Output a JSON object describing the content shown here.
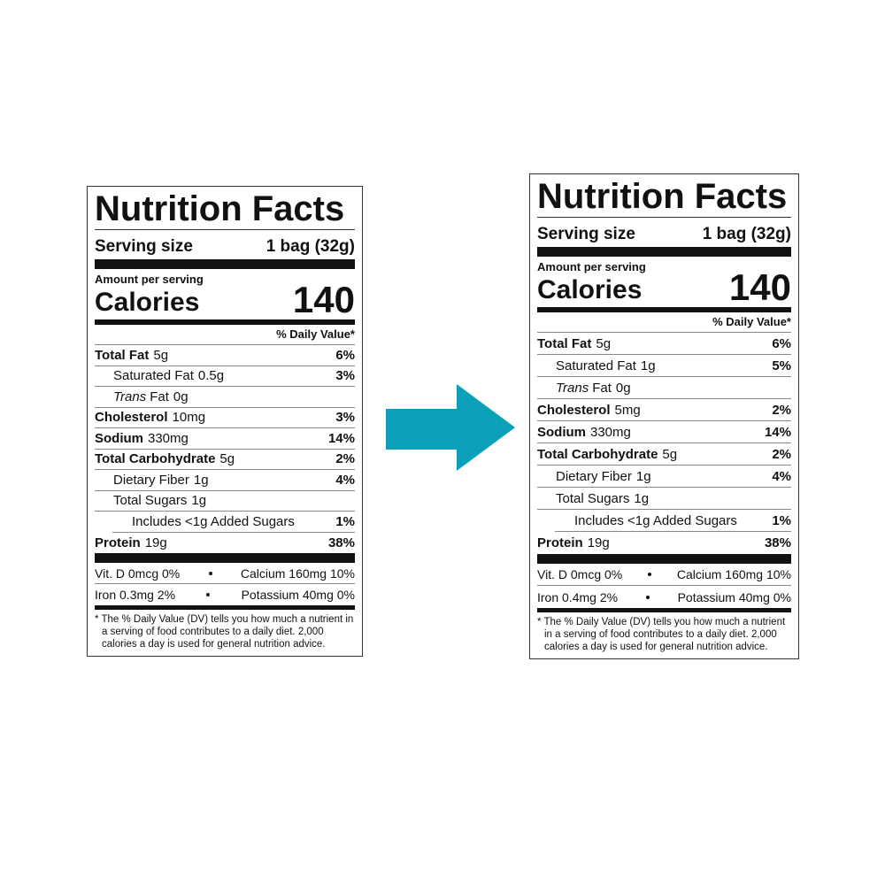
{
  "labels": [
    {
      "title": "Nutrition Facts",
      "serving_label": "Serving size",
      "serving_value": "1 bag (32g)",
      "amount_per_serving": "Amount per serving",
      "calories_label": "Calories",
      "calories_value": "140",
      "daily_value_header": "% Daily Value*",
      "nutrients": [
        {
          "name": "Total Fat",
          "amount": "5g",
          "dv": "6%",
          "sub": [
            {
              "name": "Saturated Fat",
              "amount": "0.5g",
              "dv": "3%"
            },
            {
              "name_italic": "Trans",
              "name": "Fat",
              "amount": "0g"
            }
          ]
        },
        {
          "name": "Cholesterol",
          "amount": "10mg",
          "dv": "3%"
        },
        {
          "name": "Sodium",
          "amount": "330mg",
          "dv": "14%"
        },
        {
          "name": "Total Carbohydrate",
          "amount": "5g",
          "dv": "2%",
          "sub": [
            {
              "name": "Dietary Fiber",
              "amount": "1g",
              "dv": "4%"
            },
            {
              "name": "Total Sugars",
              "amount": "1g",
              "sub": [
                {
                  "name": "Includes <1g Added Sugars",
                  "dv": "1%"
                }
              ]
            }
          ]
        },
        {
          "name": "Protein",
          "amount": "19g",
          "dv": "38%"
        }
      ],
      "minerals": [
        [
          "Vit. D 0mcg 0%",
          "Calcium 160mg 10%"
        ],
        [
          "Iron 0.3mg 2%",
          "Potassium 40mg 0%"
        ]
      ],
      "footnote": "* The % Daily Value (DV) tells you how much a nutrient in a serving of food contributes to a daily diet. 2,000 calories a day is used for general nutrition advice."
    },
    {
      "title": "Nutrition Facts",
      "serving_label": "Serving size",
      "serving_value": "1 bag (32g)",
      "amount_per_serving": "Amount per serving",
      "calories_label": "Calories",
      "calories_value": "140",
      "daily_value_header": "% Daily Value*",
      "nutrients": [
        {
          "name": "Total Fat",
          "amount": "5g",
          "dv": "6%",
          "sub": [
            {
              "name": "Saturated Fat",
              "amount": "1g",
              "dv": "5%"
            },
            {
              "name_italic": "Trans",
              "name": "Fat",
              "amount": "0g"
            }
          ]
        },
        {
          "name": "Cholesterol",
          "amount": "5mg",
          "dv": "2%"
        },
        {
          "name": "Sodium",
          "amount": "330mg",
          "dv": "14%"
        },
        {
          "name": "Total Carbohydrate",
          "amount": "5g",
          "dv": "2%",
          "sub": [
            {
              "name": "Dietary Fiber",
              "amount": "1g",
              "dv": "4%"
            },
            {
              "name": "Total Sugars",
              "amount": "1g",
              "sub": [
                {
                  "name": "Includes <1g Added Sugars",
                  "dv": "1%"
                }
              ]
            }
          ]
        },
        {
          "name": "Protein",
          "amount": "19g",
          "dv": "38%"
        }
      ],
      "minerals": [
        [
          "Vit. D 0mcg 0%",
          "Calcium 160mg 10%"
        ],
        [
          "Iron 0.4mg 2%",
          "Potassium 40mg 0%"
        ]
      ],
      "footnote": "* The % Daily Value (DV) tells you how much a nutrient in a serving of food contributes to a daily diet. 2,000 calories a day is used for general nutrition advice."
    }
  ]
}
